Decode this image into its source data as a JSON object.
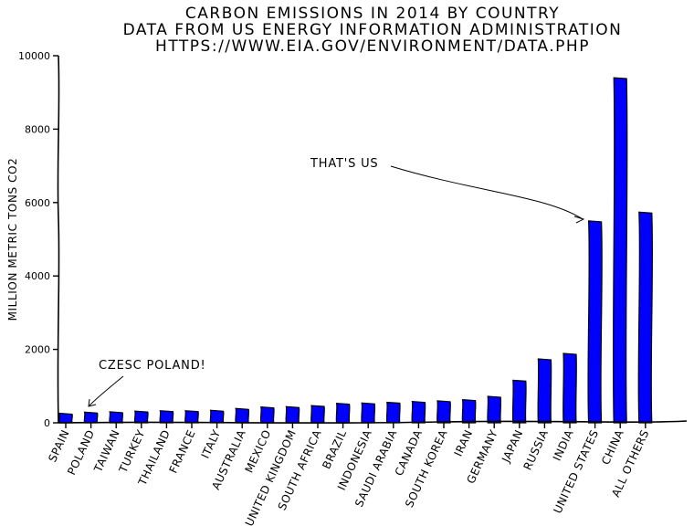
{
  "chart_data": {
    "type": "bar",
    "title_lines": [
      "CARBON EMISSIONS IN 2014 BY COUNTRY",
      "DATA FROM US ENERGY INFORMATION ADMINISTRATION",
      "HTTPS://WWW.EIA.GOV/ENVIRONMENT/DATA.PHP"
    ],
    "ylabel": "MILLION METRIC TONS CO2",
    "xlabel": "",
    "ylim": [
      0,
      10000
    ],
    "yticks": [
      "0",
      "2000",
      "4000",
      "6000",
      "8000",
      "10000"
    ],
    "bar_color": "#0000ff",
    "categories": [
      "SPAIN",
      "POLAND",
      "TAIWAN",
      "TURKEY",
      "THAILAND",
      "FRANCE",
      "ITALY",
      "AUSTRALIA",
      "MEXICO",
      "UNITED KINGDOM",
      "SOUTH AFRICA",
      "BRAZIL",
      "INDONESIA",
      "SAUDI ARABIA",
      "CANADA",
      "SOUTH KOREA",
      "IRAN",
      "GERMANY",
      "JAPAN",
      "RUSSIA",
      "INDIA",
      "UNITED STATES",
      "CHINA",
      "ALL OTHERS"
    ],
    "values": [
      260,
      290,
      300,
      320,
      330,
      330,
      340,
      390,
      430,
      440,
      470,
      530,
      540,
      560,
      580,
      600,
      630,
      720,
      1160,
      1740,
      1890,
      5500,
      9400,
      5740
    ],
    "annotations": [
      {
        "text": "THAT'S US",
        "target": "UNITED STATES"
      },
      {
        "text": "CZESC POLAND!",
        "target": "POLAND"
      }
    ]
  }
}
